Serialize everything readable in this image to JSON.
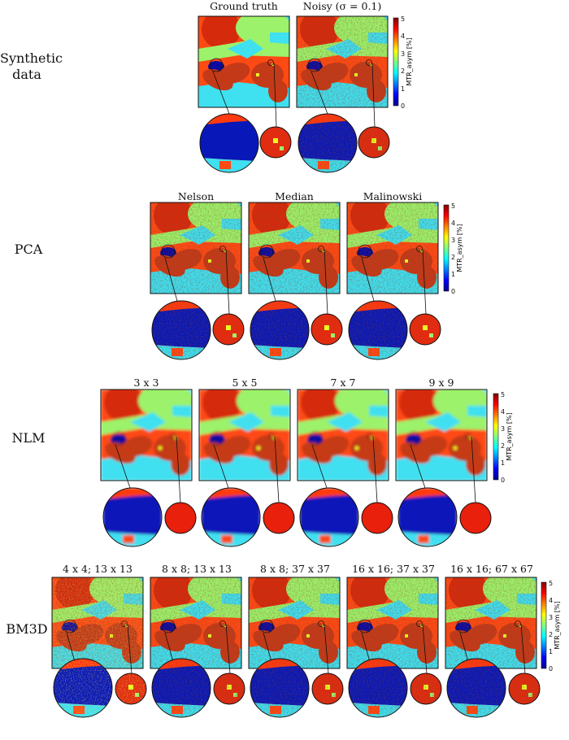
{
  "figure": {
    "colorbar": {
      "label": "MTR_asym [%]",
      "ticks": [
        "5",
        "4",
        "3",
        "2",
        "1",
        "0"
      ]
    },
    "rows": [
      {
        "label": "Synthetic data",
        "titles": [
          "Ground truth",
          "Noisy (σ = 0.1)"
        ]
      },
      {
        "label": "PCA",
        "titles": [
          "Nelson",
          "Median",
          "Malinowski"
        ]
      },
      {
        "label": "NLM",
        "titles": [
          "3 x 3",
          "5 x 5",
          "7 x 7",
          "9 x 9"
        ]
      },
      {
        "label": "BM3D",
        "titles": [
          "4 x 4; 13 x 13",
          "8 x 8; 13 x 13",
          "8 x 8; 37 x 37",
          "16 x 16; 37 x 37",
          "16 x 16; 67 x 67"
        ]
      }
    ]
  }
}
